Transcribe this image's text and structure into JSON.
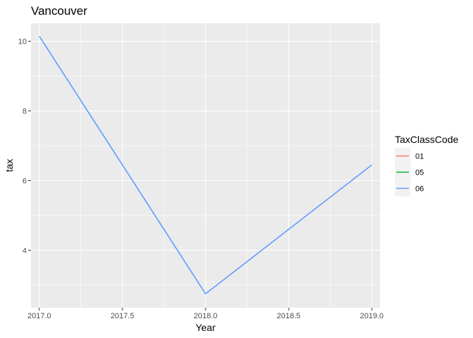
{
  "chart_data": {
    "type": "line",
    "title": "Vancouver",
    "xlabel": "Year",
    "ylabel": "tax",
    "xlim": [
      2016.95,
      2019.05
    ],
    "ylim": [
      2.35,
      10.52
    ],
    "x_ticks": [
      2017.0,
      2017.5,
      2018.0,
      2018.5,
      2019.0
    ],
    "x_tick_labels": [
      "2017.0",
      "2017.5",
      "2018.0",
      "2018.5",
      "2019.0"
    ],
    "y_ticks": [
      4,
      6,
      8,
      10
    ],
    "y_tick_labels": [
      "4",
      "6",
      "8",
      "10"
    ],
    "grid": true,
    "legend": {
      "title": "TaxClassCode",
      "position": "right",
      "entries": [
        {
          "label": "01",
          "color": "#F8766D"
        },
        {
          "label": "05",
          "color": "#00BA38"
        },
        {
          "label": "06",
          "color": "#619CFF"
        }
      ]
    },
    "series": [
      {
        "name": "06",
        "color": "#619CFF",
        "x": [
          2017,
          2018,
          2019
        ],
        "y": [
          10.15,
          2.75,
          6.45
        ]
      }
    ]
  }
}
